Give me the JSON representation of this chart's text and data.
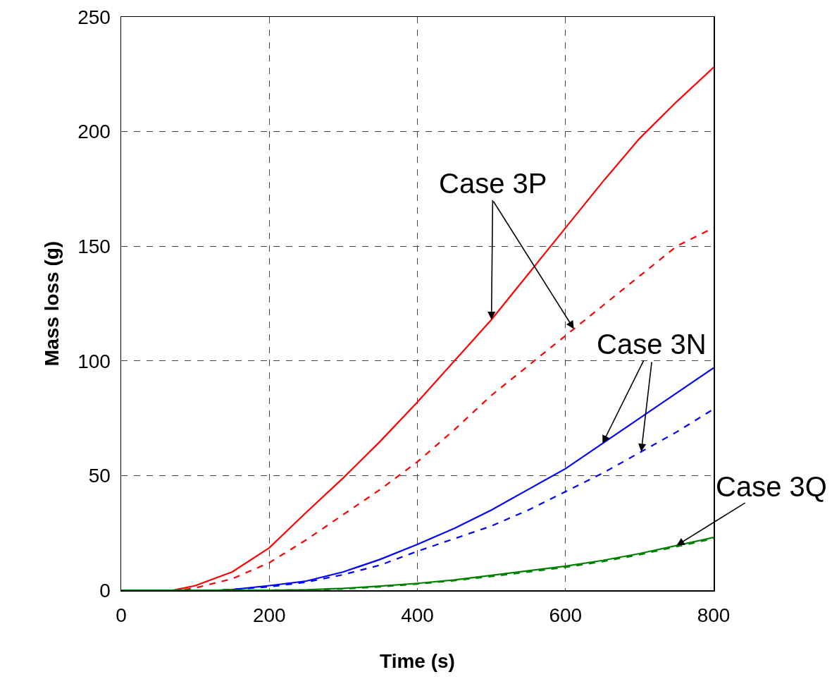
{
  "chart_data": {
    "type": "line",
    "xlabel": "Time (s)",
    "ylabel": "Mass loss (g)",
    "xlim": [
      0,
      800
    ],
    "ylim": [
      0,
      250
    ],
    "xticks": [
      0,
      200,
      400,
      600,
      800
    ],
    "yticks": [
      0,
      50,
      100,
      150,
      200,
      250
    ],
    "grid": true,
    "marker": "none",
    "series": [
      {
        "color": "#ff0000",
        "line_style": "solid",
        "x": [
          0,
          70,
          100,
          150,
          200,
          250,
          300,
          350,
          400,
          450,
          500,
          550,
          600,
          650,
          700,
          750,
          800
        ],
        "values": [
          0,
          0,
          2,
          8,
          18.5,
          34,
          49,
          65,
          82,
          100,
          118,
          138,
          158,
          178,
          197,
          213,
          228
        ]
      },
      {
        "color": "#ff0000",
        "line_style": "dashed",
        "x": [
          0,
          80,
          100,
          150,
          200,
          250,
          300,
          350,
          400,
          450,
          500,
          550,
          600,
          650,
          700,
          750,
          800
        ],
        "values": [
          0,
          0,
          1,
          5,
          12,
          22,
          33,
          44,
          56,
          70,
          85,
          98,
          111,
          124,
          137,
          150,
          158
        ]
      },
      {
        "color": "#0000ff",
        "line_style": "solid",
        "x": [
          0,
          130,
          150,
          200,
          250,
          300,
          350,
          400,
          450,
          500,
          550,
          600,
          650,
          700,
          750,
          800
        ],
        "values": [
          0,
          0,
          0.3,
          2,
          4,
          8,
          13.5,
          20,
          27,
          35,
          44,
          53,
          64,
          75,
          86,
          97
        ]
      },
      {
        "color": "#0000ff",
        "line_style": "dashed",
        "x": [
          0,
          130,
          150,
          200,
          250,
          300,
          350,
          400,
          450,
          500,
          550,
          600,
          650,
          700,
          750,
          800
        ],
        "values": [
          0,
          0,
          0.3,
          1.5,
          3.5,
          6.8,
          11,
          17,
          22.5,
          28,
          35,
          43,
          51,
          60,
          69,
          79
        ]
      },
      {
        "color": "#008000",
        "line_style": "solid",
        "x": [
          0,
          200,
          250,
          300,
          350,
          400,
          450,
          500,
          550,
          600,
          650,
          700,
          750,
          800
        ],
        "values": [
          0,
          0,
          0.2,
          0.8,
          1.8,
          3,
          4.5,
          6.5,
          8.5,
          10.5,
          13,
          16,
          19.5,
          23
        ]
      },
      {
        "color": "#008000",
        "line_style": "dashed",
        "x": [
          0,
          200,
          250,
          300,
          350,
          400,
          450,
          500,
          550,
          600,
          650,
          700,
          750,
          800
        ],
        "values": [
          0,
          0,
          0.1,
          0.6,
          1.5,
          2.7,
          4.2,
          6,
          8,
          10,
          12.5,
          15.5,
          19,
          22.5
        ]
      }
    ],
    "annotations": [
      {
        "text": "Case 3P",
        "x": 500,
        "y": 118
      },
      {
        "text": "Case 3N",
        "x": 650,
        "y": 64
      },
      {
        "text": "Case 3Q",
        "x": 750,
        "y": 19.5
      }
    ]
  }
}
